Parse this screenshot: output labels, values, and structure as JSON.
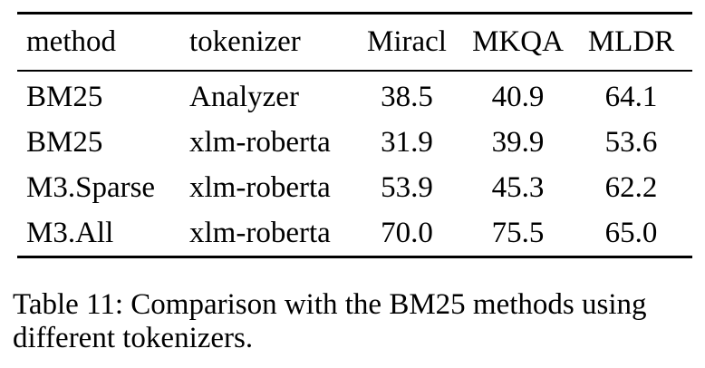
{
  "page": {
    "background_color": "#ffffff",
    "text_color": "#000000",
    "rule_color": "#000000"
  },
  "table": {
    "columns": [
      "method",
      "tokenizer",
      "Miracl",
      "MKQA",
      "MLDR"
    ],
    "rows": [
      [
        "BM25",
        "Analyzer",
        "38.5",
        "40.9",
        "64.1"
      ],
      [
        "BM25",
        "xlm-roberta",
        "31.9",
        "39.9",
        "53.6"
      ],
      [
        "M3.Sparse",
        "xlm-roberta",
        "53.9",
        "45.3",
        "62.2"
      ],
      [
        "M3.All",
        "xlm-roberta",
        "70.0",
        "75.5",
        "65.0"
      ]
    ]
  },
  "caption": {
    "lines": [
      "Table 11: Comparison with the BM25 methods using",
      "different tokenizers."
    ],
    "full_text": "Table 11: Comparison with the BM25 methods using different tokenizers."
  },
  "chart_data": {
    "type": "table",
    "columns": [
      "method",
      "tokenizer",
      "Miracl",
      "MKQA",
      "MLDR"
    ],
    "rows": [
      {
        "method": "BM25",
        "tokenizer": "Analyzer",
        "Miracl": 38.5,
        "MKQA": 40.9,
        "MLDR": 64.1
      },
      {
        "method": "BM25",
        "tokenizer": "xlm-roberta",
        "Miracl": 31.9,
        "MKQA": 39.9,
        "MLDR": 53.6
      },
      {
        "method": "M3.Sparse",
        "tokenizer": "xlm-roberta",
        "Miracl": 53.9,
        "MKQA": 45.3,
        "MLDR": 62.2
      },
      {
        "method": "M3.All",
        "tokenizer": "xlm-roberta",
        "Miracl": 70.0,
        "MKQA": 75.5,
        "MLDR": 65.0
      }
    ],
    "title": "Table 11: Comparison with the BM25 methods using different tokenizers."
  }
}
